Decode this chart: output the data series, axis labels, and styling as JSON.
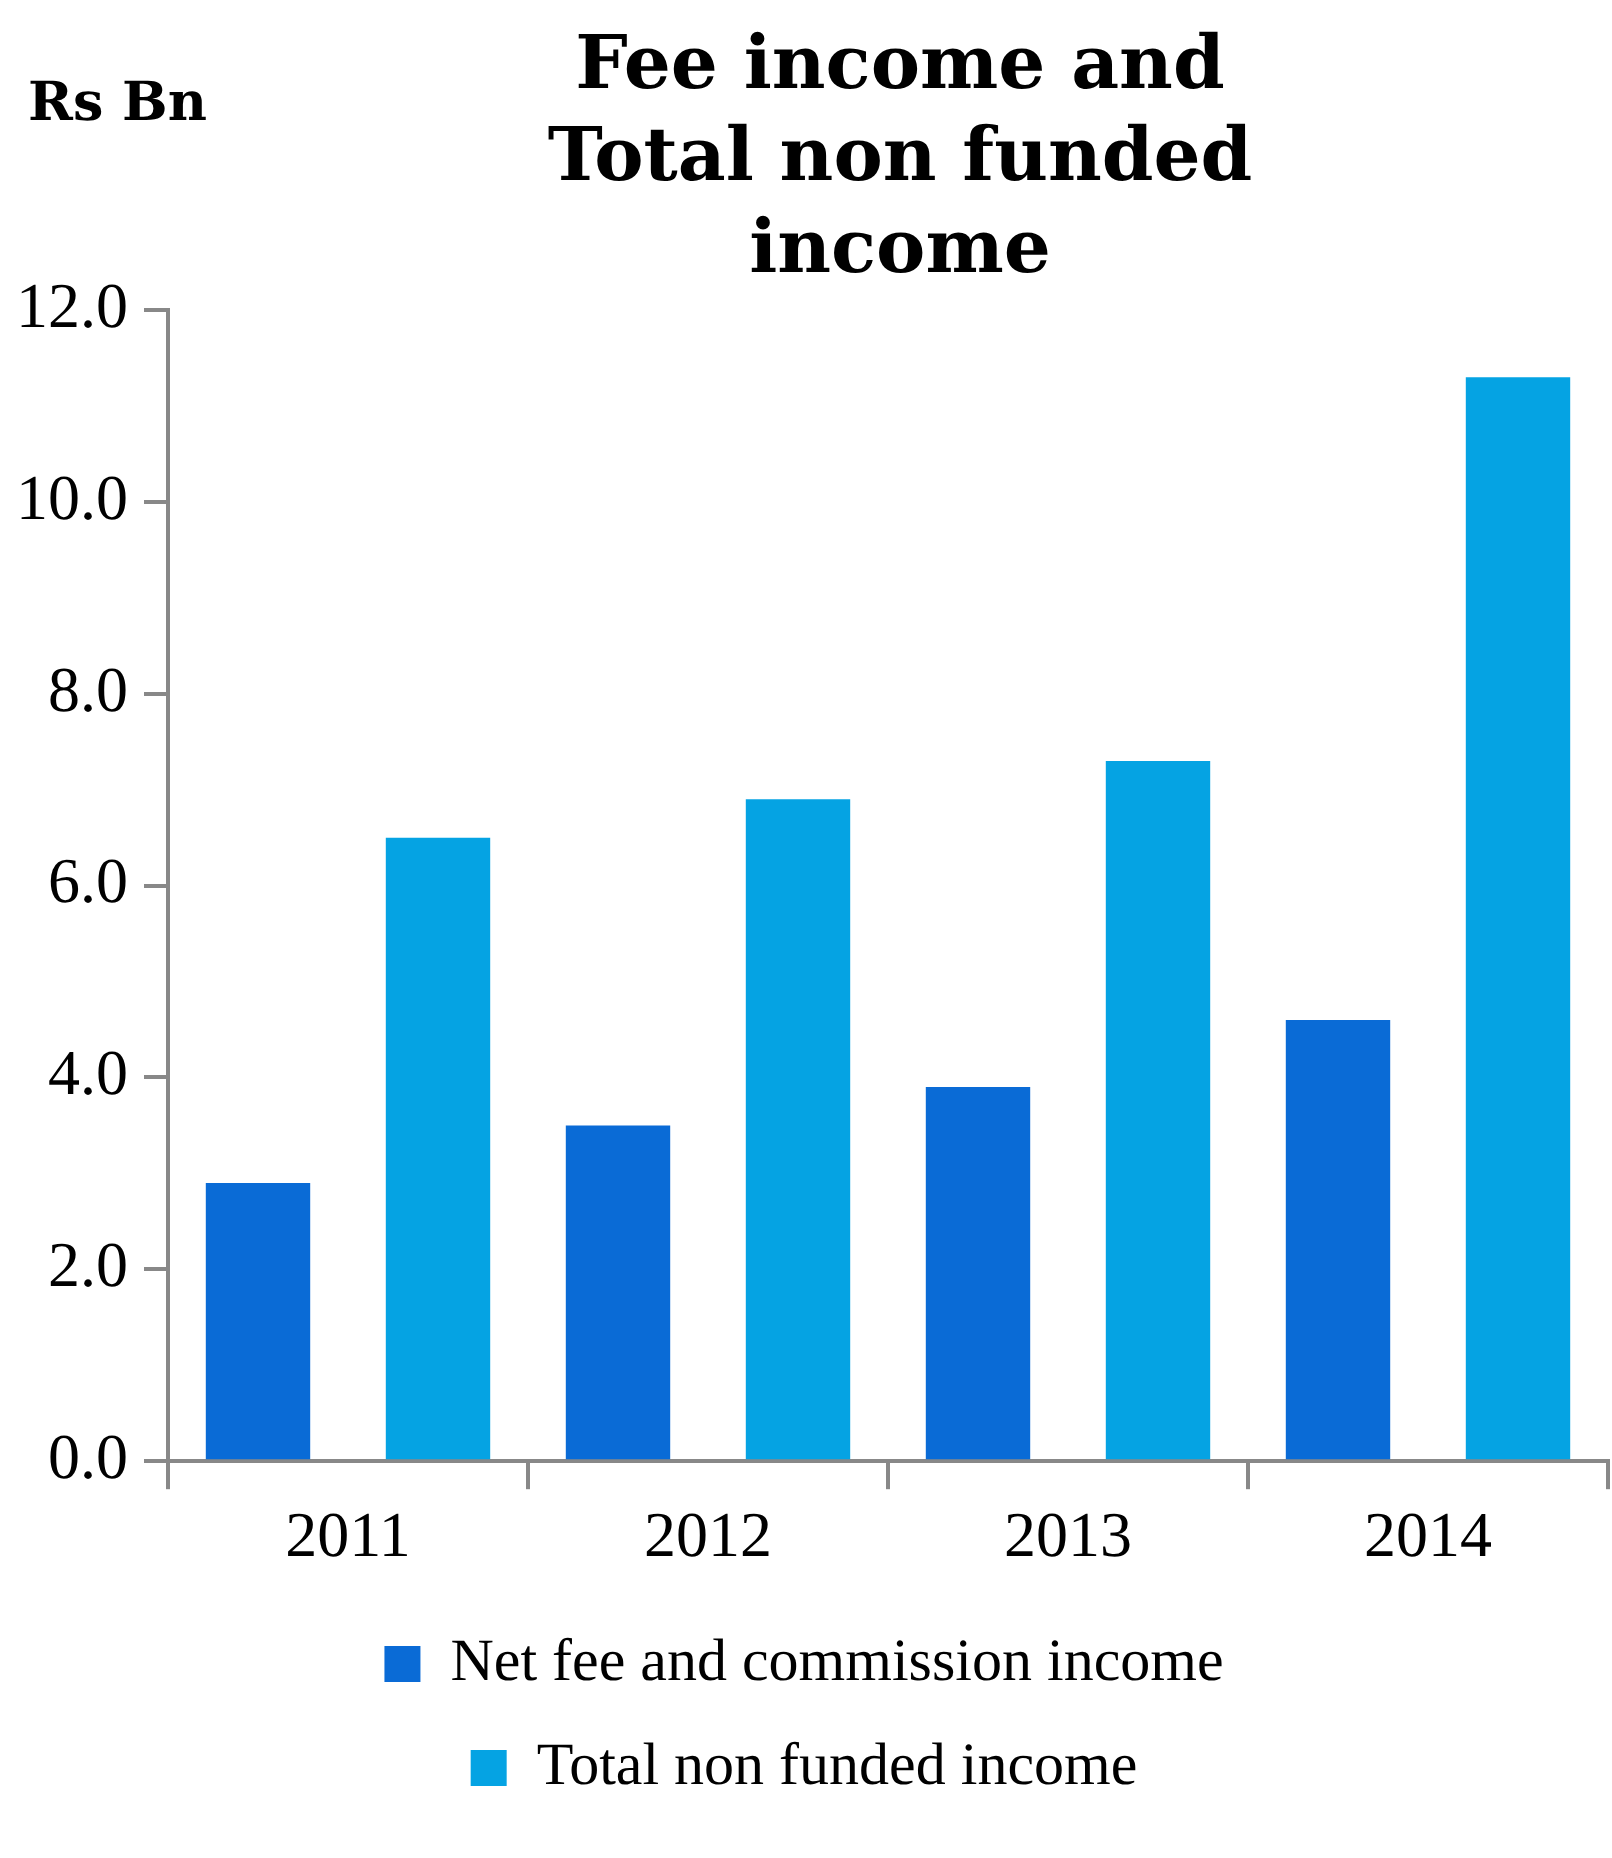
{
  "chart_data": {
    "type": "bar",
    "title": "Fee income and Total non funded income",
    "ylabel": "Rs Bn",
    "categories": [
      "2011",
      "2012",
      "2013",
      "2014"
    ],
    "series": [
      {
        "name": "Net fee and commission income",
        "color": "#0a6bd6",
        "values": [
          2.9,
          3.5,
          3.9,
          4.6
        ]
      },
      {
        "name": "Total non funded income",
        "color": "#05a3e3",
        "values": [
          6.5,
          6.9,
          7.3,
          11.3
        ]
      }
    ],
    "ylim": [
      0,
      12
    ],
    "yticks": [
      {
        "value": 0,
        "label": "0.0"
      },
      {
        "value": 2,
        "label": "2.0"
      },
      {
        "value": 4,
        "label": "4.0"
      },
      {
        "value": 6,
        "label": "6.0"
      },
      {
        "value": 8,
        "label": "8.0"
      },
      {
        "value": 10,
        "label": "10.0"
      },
      {
        "value": 12,
        "label": "12.0"
      }
    ],
    "grid": false,
    "legend": "bottom"
  }
}
